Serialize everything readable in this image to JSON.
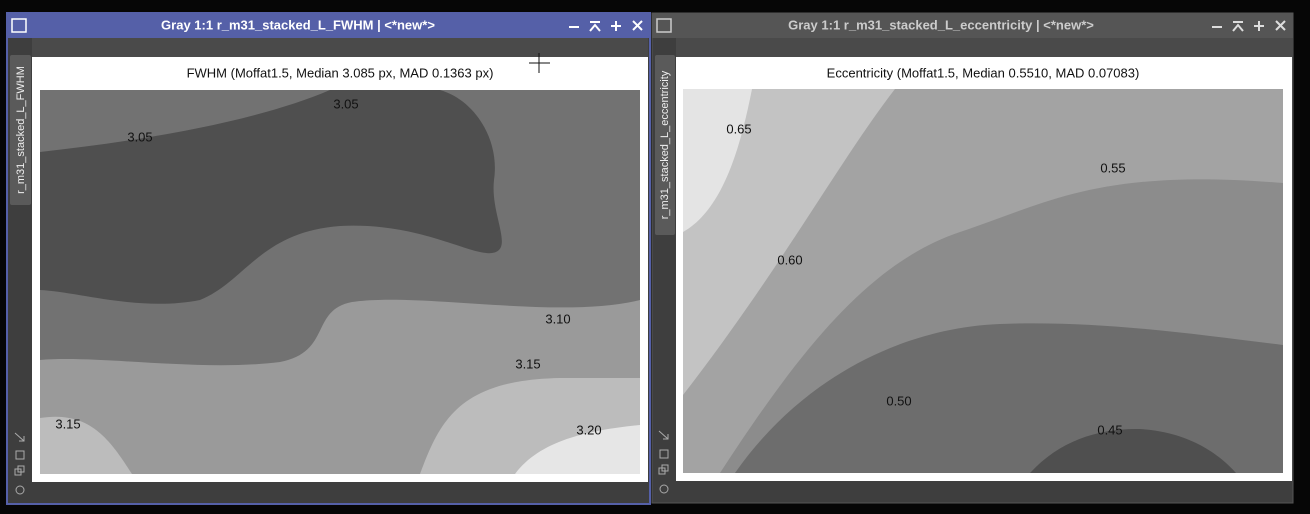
{
  "windows": [
    {
      "title": "Gray 1:1 r_m31_stacked_L_FWHM | <*new*>",
      "tab": "r_m31_stacked_L_FWHM",
      "plot_title": "FWHM (Moffat1.5, Median 3.085 px, MAD 0.1363 px)",
      "contour_labels": [
        "3.05",
        "3.05",
        "3.10",
        "3.15",
        "3.15",
        "3.20"
      ]
    },
    {
      "title": "Gray 1:1 r_m31_stacked_L_eccentricity | <*new*>",
      "tab": "r_m31_stacked_L_eccentricity",
      "plot_title": "Eccentricity (Moffat1.5, Median 0.5510, MAD 0.07083)",
      "contour_labels": [
        "0.65",
        "0.55",
        "0.60",
        "0.50",
        "0.45"
      ]
    }
  ]
}
